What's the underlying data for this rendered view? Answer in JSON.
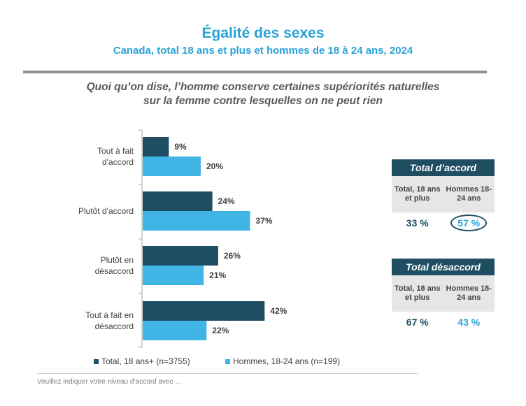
{
  "header": {
    "title": "Égalité des sexes",
    "subtitle": "Canada, total 18 ans et plus et hommes de 18 à 24 ans, 2024",
    "question_line1": "Quoi qu’on dise, l’homme conserve certaines supériorités naturelles",
    "question_line2": "sur la femme contre lesquelles on ne peut rien"
  },
  "colors": {
    "total": "#1f4e63",
    "men": "#40b4e5",
    "accent": "#2aa3d6"
  },
  "chart_data": {
    "type": "bar",
    "orientation": "horizontal",
    "categories": [
      [
        "Tout à fait",
        "d'accord"
      ],
      [
        "Plutôt d'accord"
      ],
      [
        "Plutôt en",
        "désaccord"
      ],
      [
        "Tout à fait en",
        "désaccord"
      ]
    ],
    "series": [
      {
        "name": "Total, 18 ans+ (n=3755)",
        "values": [
          9,
          24,
          26,
          42
        ],
        "labels": [
          "9%",
          "24%",
          "26%",
          "42%"
        ]
      },
      {
        "name": "Hommes, 18-24 ans (n=199)",
        "values": [
          20,
          37,
          21,
          22
        ],
        "labels": [
          "20%",
          "37%",
          "21%",
          "22%"
        ]
      }
    ],
    "xlim": [
      0,
      50
    ],
    "legend_position": "bottom"
  },
  "summary": {
    "agree": {
      "title": "Total d’accord",
      "col1": "Total, 18 ans et plus",
      "col2": "Hommes 18-24 ans",
      "val1": "33 %",
      "val2": "57 %"
    },
    "disagree": {
      "title": "Total désaccord",
      "col1": "Total, 18 ans et plus",
      "col2": "Hommes 18-24 ans",
      "val1": "67 %",
      "val2": "43 %"
    }
  },
  "footnote": "Veuillez indiquer votre niveau d’accord avec …"
}
